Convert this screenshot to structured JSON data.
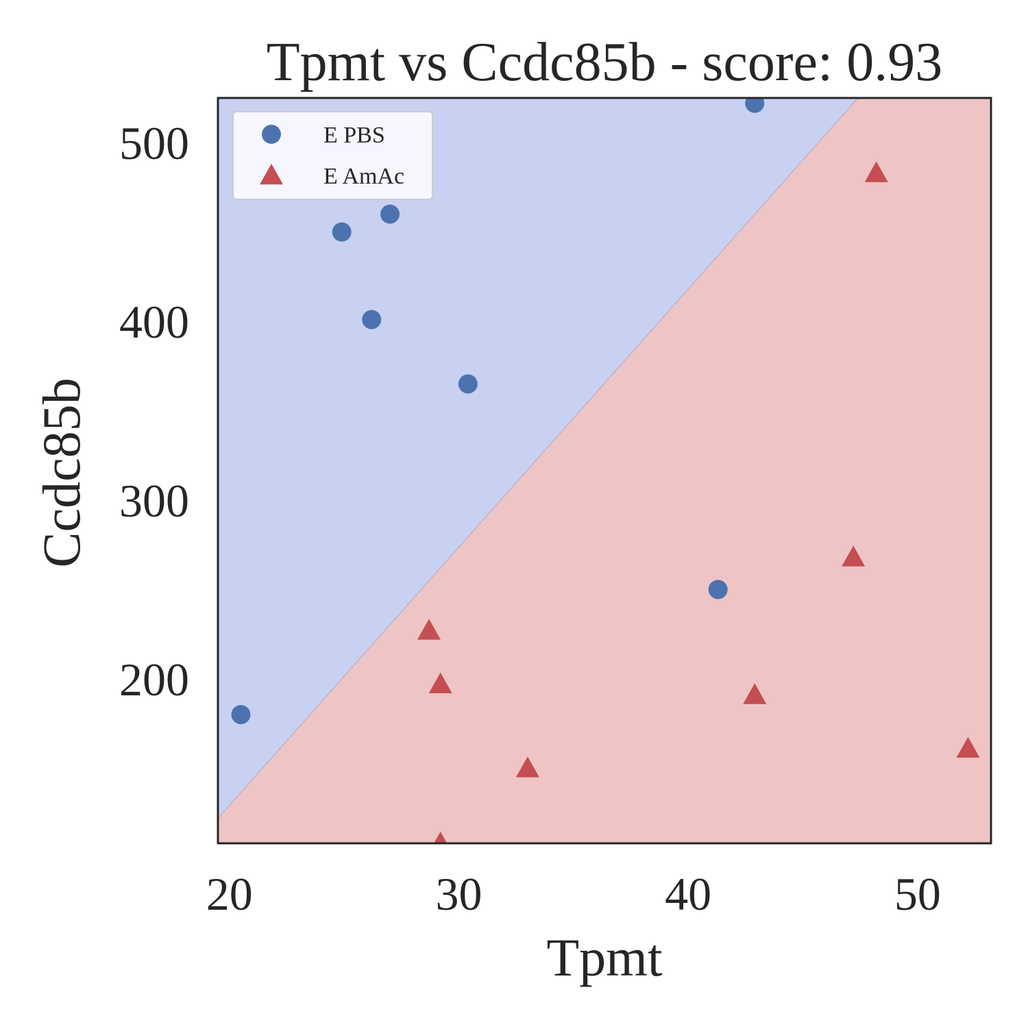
{
  "chart_data": {
    "type": "scatter",
    "title": "Tpmt vs Ccdc85b - score: 0.93",
    "xlabel": "Tpmt",
    "ylabel": "Ccdc85b",
    "xlim": [
      19.5,
      53.2
    ],
    "ylim": [
      108,
      525
    ],
    "xticks": [
      20,
      30,
      40,
      50
    ],
    "yticks": [
      200,
      300,
      400,
      500
    ],
    "xtick_labels": [
      "20",
      "30",
      "40",
      "50"
    ],
    "ytick_labels": [
      "200",
      "300",
      "400",
      "500"
    ],
    "grid": false,
    "legend_position": "top-left",
    "decision_boundary": {
      "points": [
        [
          19.5,
          122
        ],
        [
          47.4,
          525
        ]
      ],
      "upper_region_color": "#c8d1f1",
      "lower_region_color": "#eec4c4"
    },
    "series": [
      {
        "name": "E PBS",
        "marker": "circle",
        "color": "#4c72b0",
        "points": [
          [
            20.5,
            180
          ],
          [
            24.9,
            450
          ],
          [
            27.0,
            460
          ],
          [
            26.2,
            401
          ],
          [
            30.4,
            365
          ],
          [
            42.9,
            522
          ],
          [
            41.3,
            250
          ]
        ]
      },
      {
        "name": "E AmAc",
        "marker": "triangle",
        "color": "#c44e52",
        "points": [
          [
            48.2,
            483
          ],
          [
            47.2,
            268
          ],
          [
            28.7,
            227
          ],
          [
            29.2,
            197
          ],
          [
            42.9,
            191
          ],
          [
            52.2,
            161
          ],
          [
            33.0,
            150
          ],
          [
            29.2,
            108
          ]
        ]
      }
    ]
  }
}
